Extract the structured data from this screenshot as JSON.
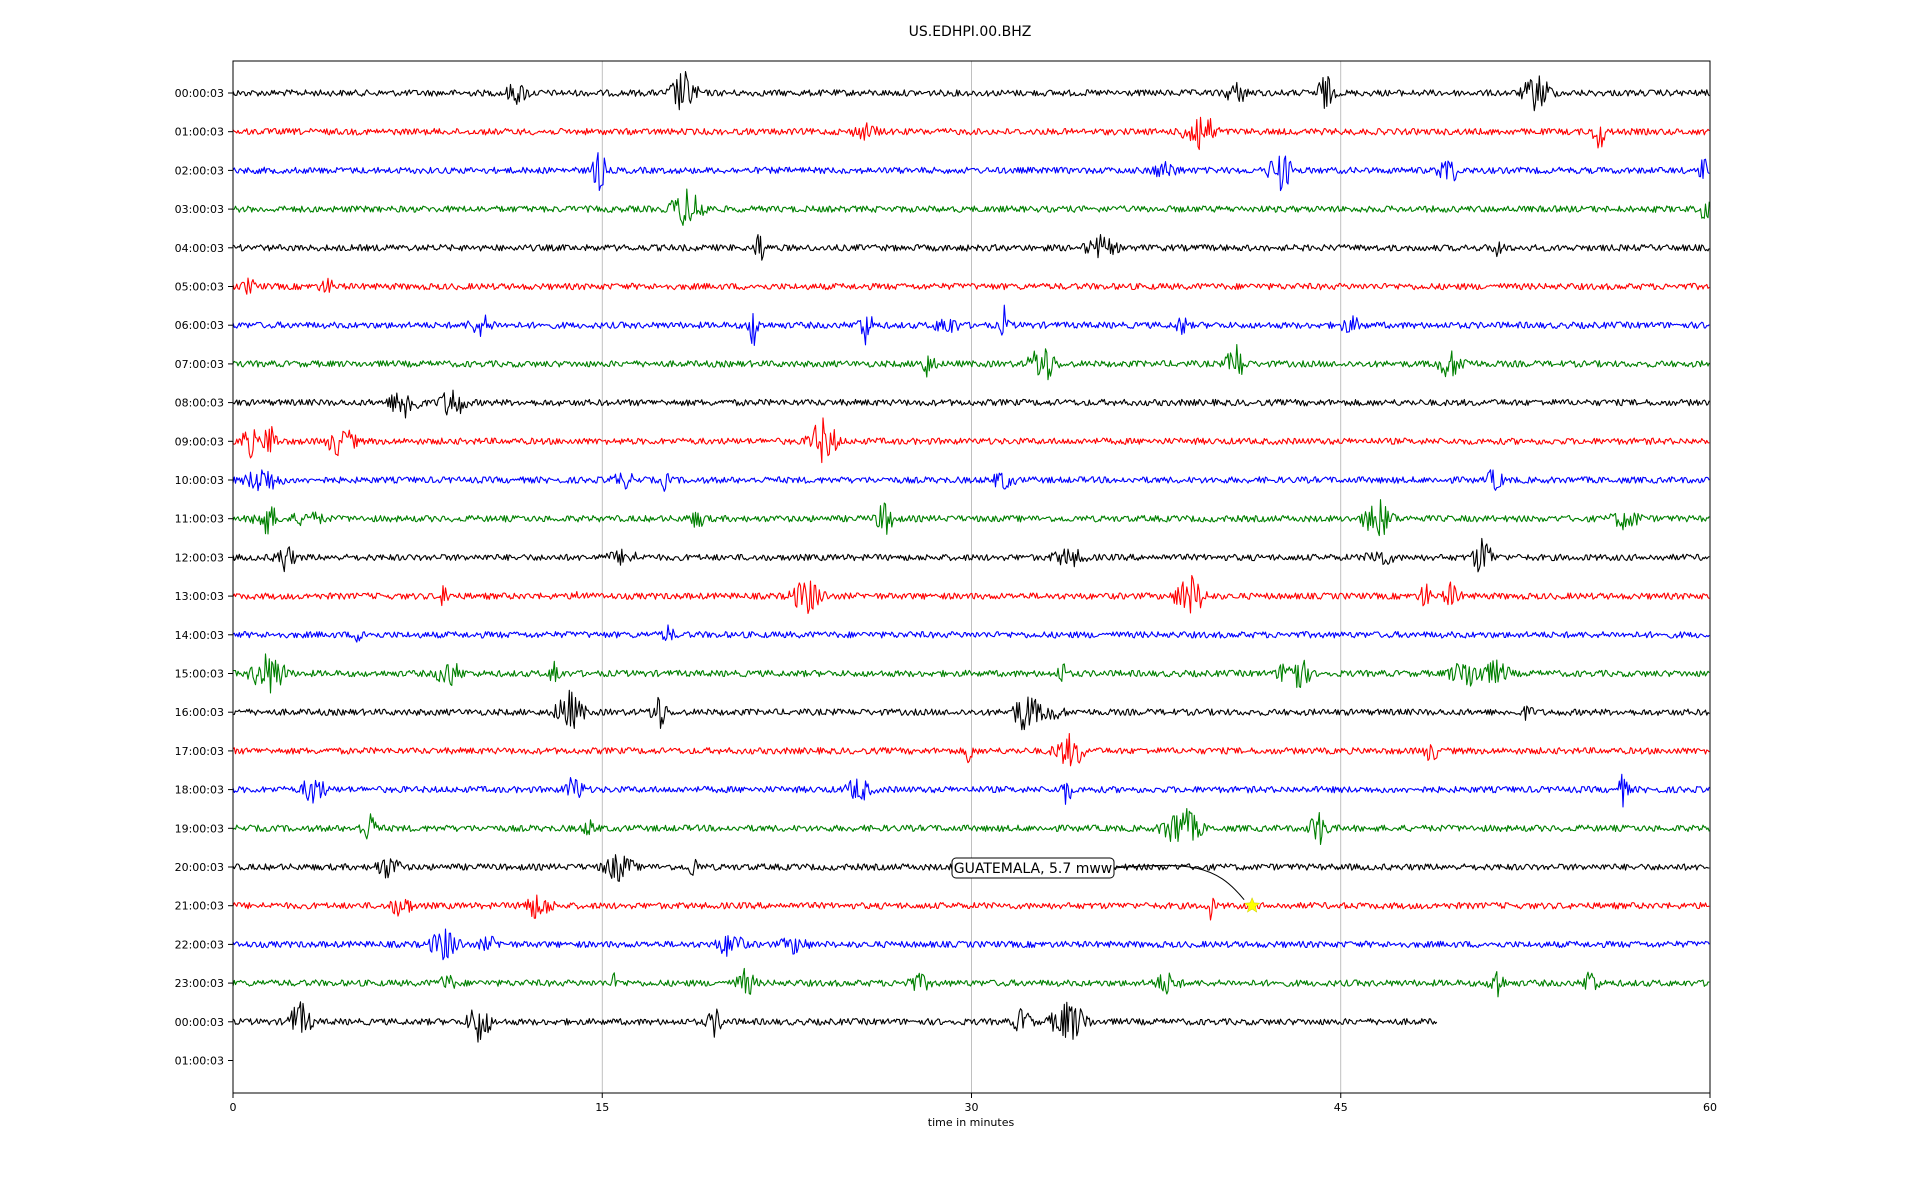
{
  "chart_data": {
    "type": "line",
    "title": "US.EDHPI.00.BHZ",
    "xlabel": "time in minutes",
    "ylabel": "",
    "xlim": [
      0,
      60
    ],
    "x_ticks": [
      0,
      15,
      30,
      45,
      60
    ],
    "x_grid": true,
    "row_labels": [
      "00:00:03",
      "01:00:03",
      "02:00:03",
      "03:00:03",
      "04:00:03",
      "05:00:03",
      "06:00:03",
      "07:00:03",
      "08:00:03",
      "09:00:03",
      "10:00:03",
      "11:00:03",
      "12:00:03",
      "13:00:03",
      "14:00:03",
      "15:00:03",
      "16:00:03",
      "17:00:03",
      "18:00:03",
      "19:00:03",
      "20:00:03",
      "21:00:03",
      "22:00:03",
      "23:00:03",
      "00:00:03",
      "01:00:03"
    ],
    "trace_colors": [
      "#000000",
      "#ff0000",
      "#0000ff",
      "#008000"
    ],
    "traces_count": 25,
    "last_trace_end_minute": 48.9,
    "annotation": {
      "text": "GUATEMALA, 5.7 mww",
      "hour_index": 21,
      "minute": 41.4,
      "marker": "star",
      "marker_color": "#ffff00"
    }
  }
}
